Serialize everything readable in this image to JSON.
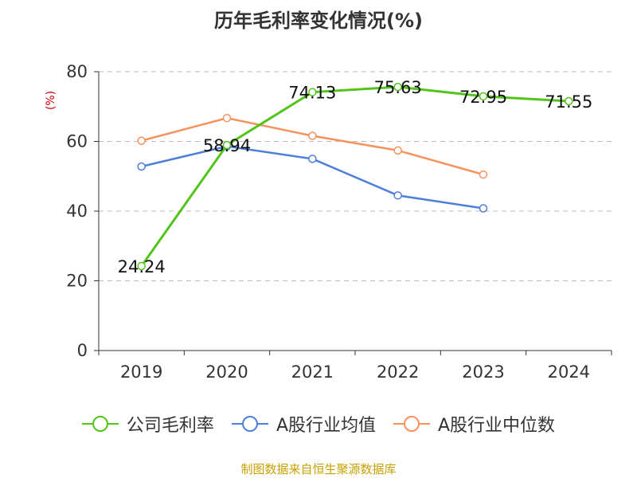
{
  "colors": {
    "gross_margin": "#52c41a",
    "a_share_avg": "#4e7fd9",
    "a_share_median": "#f5925e",
    "source": "#c8a000",
    "ylabel": "#cc0000"
  },
  "chart_data": {
    "type": "line",
    "title": "历年毛利率变化情况(%)",
    "ylabel": "(%)",
    "xlabel": "",
    "categories": [
      "2019",
      "2020",
      "2021",
      "2022",
      "2023",
      "2024"
    ],
    "ylim": [
      0,
      80
    ],
    "yticks": [
      "0",
      "20",
      "40",
      "60",
      "80"
    ],
    "grid": true,
    "legend_position": "bottom",
    "series": [
      {
        "name": "公司毛利率",
        "values": [
          24.24,
          58.94,
          74.13,
          75.63,
          72.95,
          71.55
        ],
        "labels": [
          "24.24",
          "58.94",
          "74.13",
          "75.63",
          "72.95",
          "71.55"
        ]
      },
      {
        "name": "A股行业均值",
        "values": [
          52.8,
          58.6,
          55.0,
          44.5,
          40.8,
          null
        ]
      },
      {
        "name": "A股行业中位数",
        "values": [
          60.2,
          66.7,
          61.6,
          57.4,
          50.5,
          null
        ]
      }
    ]
  },
  "source_note": "制图数据来自恒生聚源数据库"
}
